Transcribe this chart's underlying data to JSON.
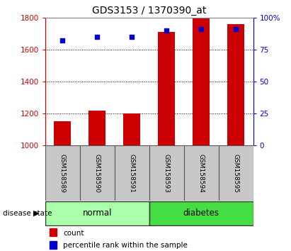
{
  "title": "GDS3153 / 1370390_at",
  "samples": [
    "GSM158589",
    "GSM158590",
    "GSM158591",
    "GSM158593",
    "GSM158594",
    "GSM158595"
  ],
  "counts": [
    1150,
    1220,
    1200,
    1710,
    1800,
    1760
  ],
  "percentiles": [
    82,
    85,
    85,
    90,
    91,
    91
  ],
  "ylim_left": [
    1000,
    1800
  ],
  "ylim_right": [
    0,
    100
  ],
  "yticks_left": [
    1000,
    1200,
    1400,
    1600,
    1800
  ],
  "yticks_right": [
    0,
    25,
    50,
    75,
    100
  ],
  "ytick_right_labels": [
    "0",
    "25",
    "50",
    "75",
    "100%"
  ],
  "bar_color": "#cc0000",
  "dot_color": "#0000cc",
  "bar_width": 0.5,
  "normal_color": "#aaffaa",
  "diabetes_color": "#44dd44",
  "group_box_color": "#c8c8c8",
  "left_axis_color": "#cc0000",
  "right_axis_color": "#0000cc",
  "legend_items": [
    {
      "label": "count",
      "color": "#cc0000"
    },
    {
      "label": "percentile rank within the sample",
      "color": "#0000cc"
    }
  ]
}
